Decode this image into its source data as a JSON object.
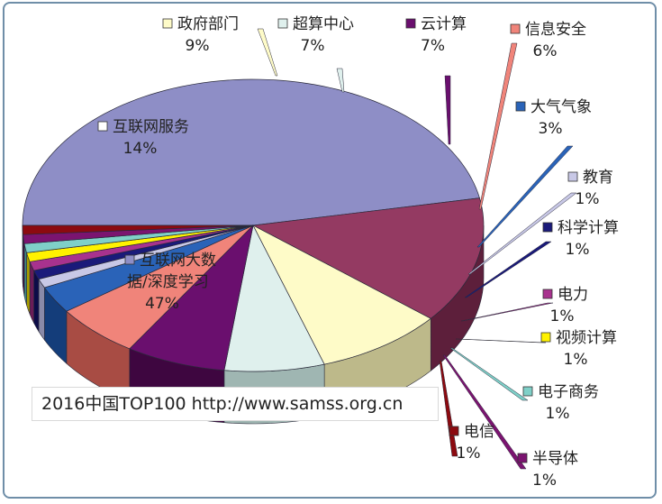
{
  "chart_data": {
    "type": "pie",
    "title": "",
    "source": "2016中国TOP100 http://www.samss.org.cn",
    "slices": [
      {
        "label": "互联网大数据/深度学习",
        "label_lines": [
          "互联网大数",
          "据/深度学习"
        ],
        "value": 47,
        "value_text": "47%",
        "color": "#8e8ec6",
        "side": "#4c4c86",
        "swatch": "#8e8ec6"
      },
      {
        "label": "互联网服务",
        "value": 14,
        "value_text": "14%",
        "color": "#943a62",
        "side": "#5d1f3b",
        "swatch": "#ffffff"
      },
      {
        "label": "政府部门",
        "value": 9,
        "value_text": "9%",
        "color": "#fefbc8",
        "side": "#bdb98a",
        "swatch": "#fefbc8"
      },
      {
        "label": "超算中心",
        "value": 7,
        "value_text": "7%",
        "color": "#dff0ed",
        "side": "#9fb6b2",
        "swatch": "#dff0ed"
      },
      {
        "label": "云计算",
        "value": 7,
        "value_text": "7%",
        "color": "#6a0f6e",
        "side": "#3e0640",
        "swatch": "#6a0f6e"
      },
      {
        "label": "信息安全",
        "value": 6,
        "value_text": "6%",
        "color": "#f0847a",
        "side": "#a84c44",
        "swatch": "#f0847a"
      },
      {
        "label": "大气气象",
        "value": 3,
        "value_text": "3%",
        "color": "#2a63b8",
        "side": "#143d7a",
        "swatch": "#2a63b8"
      },
      {
        "label": "教育",
        "value": 1,
        "value_text": "1%",
        "color": "#c8c8e6",
        "side": "#8a8aa8",
        "swatch": "#c8c8e6"
      },
      {
        "label": "科学计算",
        "value": 1,
        "value_text": "1%",
        "color": "#1a1a7a",
        "side": "#0c0c48",
        "swatch": "#1a1a7a"
      },
      {
        "label": "电力",
        "value": 1,
        "value_text": "1%",
        "color": "#a8328e",
        "side": "#6a1c58",
        "swatch": "#a8328e"
      },
      {
        "label": "视频计算",
        "value": 1,
        "value_text": "1%",
        "color": "#fff200",
        "side": "#a89e00",
        "swatch": "#fff200"
      },
      {
        "label": "电子商务",
        "value": 1,
        "value_text": "1%",
        "color": "#7fd0c8",
        "side": "#3f8a84",
        "swatch": "#7fd0c8"
      },
      {
        "label": "半导体",
        "value": 1,
        "value_text": "1%",
        "color": "#7b1470",
        "side": "#4a0a44",
        "swatch": "#7b1470"
      },
      {
        "label": "电信",
        "value": 1,
        "value_text": "1%",
        "color": "#8c0a10",
        "side": "#55050a",
        "swatch": "#8c0a10"
      }
    ]
  }
}
